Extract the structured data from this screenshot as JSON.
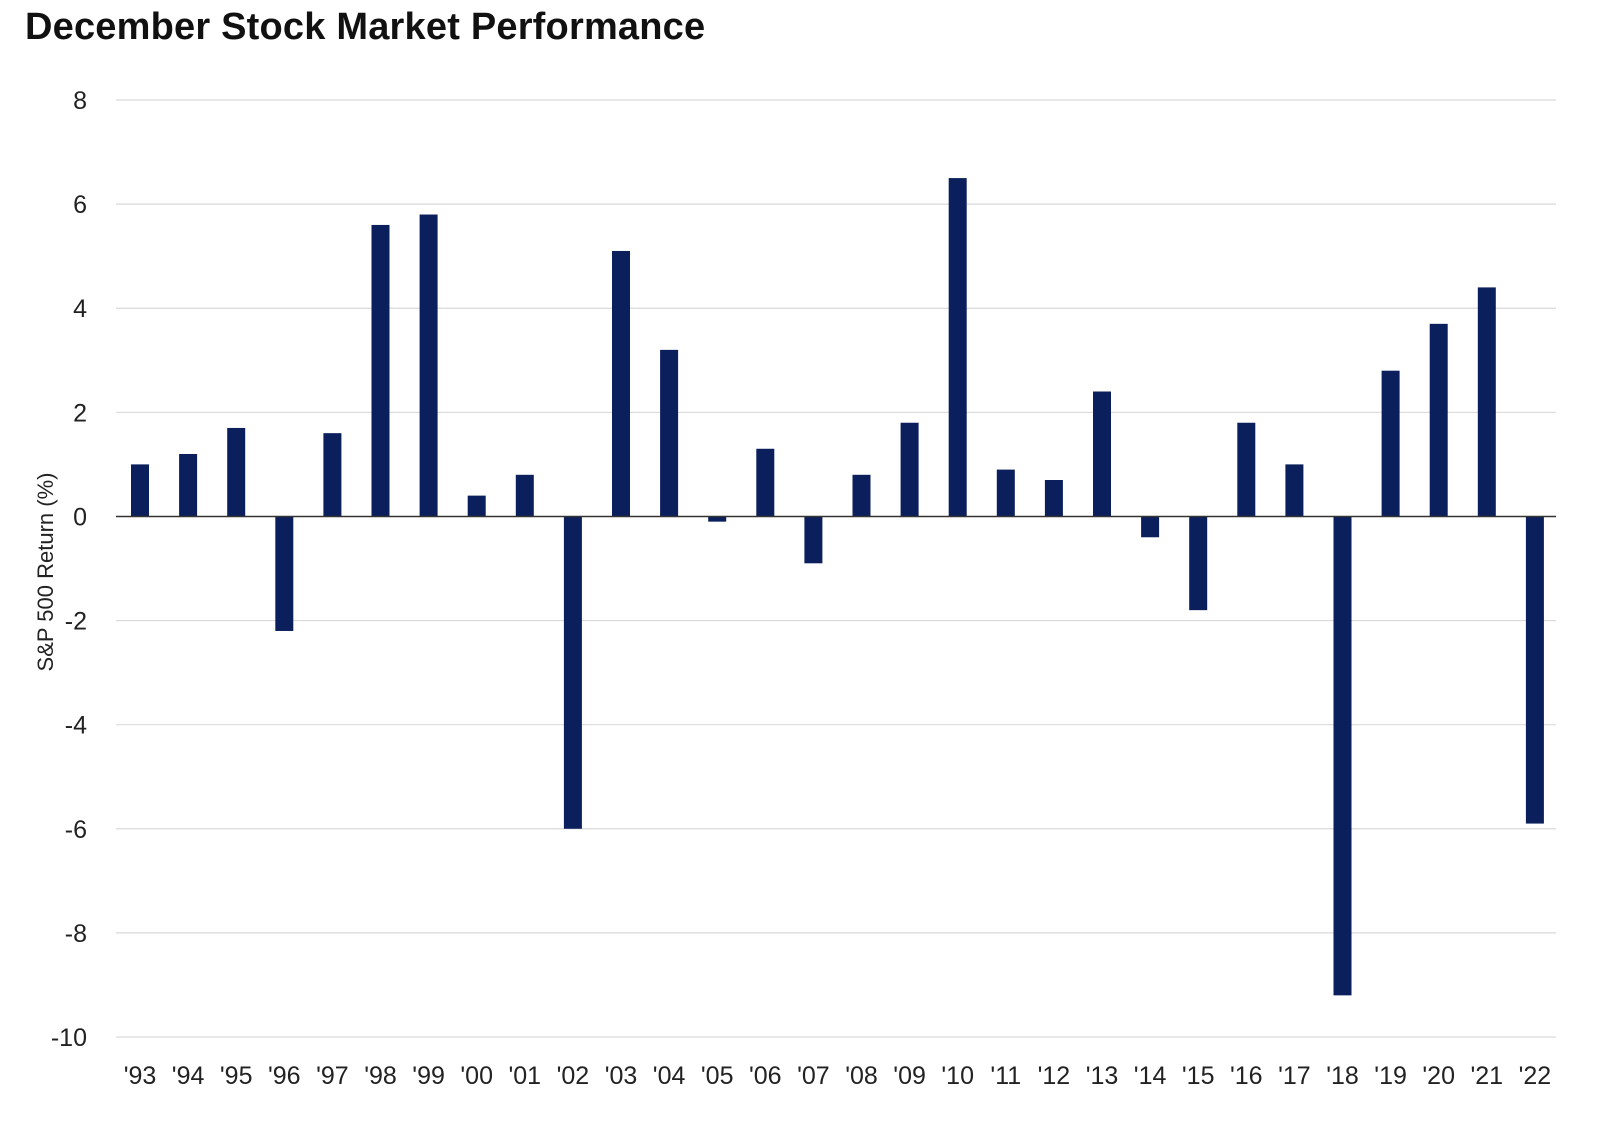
{
  "chart_data": {
    "type": "bar",
    "title": "December Stock Market Performance",
    "xlabel": "",
    "ylabel": "S&P 500 Return (%)",
    "ylim": [
      -10,
      8
    ],
    "yticks": [
      8,
      6,
      4,
      2,
      0,
      -2,
      -4,
      -6,
      -8,
      -10
    ],
    "grid": true,
    "legend": "none",
    "bar_color": "#0a1f5c",
    "categories": [
      "'93",
      "'94",
      "'95",
      "'96",
      "'97",
      "'98",
      "'99",
      "'00",
      "'01",
      "'02",
      "'03",
      "'04",
      "'05",
      "'06",
      "'07",
      "'08",
      "'09",
      "'10",
      "'11",
      "'12",
      "'13",
      "'14",
      "'15",
      "'16",
      "'17",
      "'18",
      "'19",
      "'20",
      "'21",
      "'22"
    ],
    "values": [
      1.0,
      1.2,
      1.7,
      -2.2,
      1.6,
      5.6,
      5.8,
      0.4,
      0.8,
      -6.0,
      5.1,
      3.2,
      -0.1,
      1.3,
      -0.9,
      0.8,
      1.8,
      6.5,
      0.9,
      0.7,
      2.4,
      -0.4,
      -1.8,
      1.8,
      1.0,
      -9.2,
      2.8,
      3.7,
      4.4,
      -5.9
    ]
  }
}
